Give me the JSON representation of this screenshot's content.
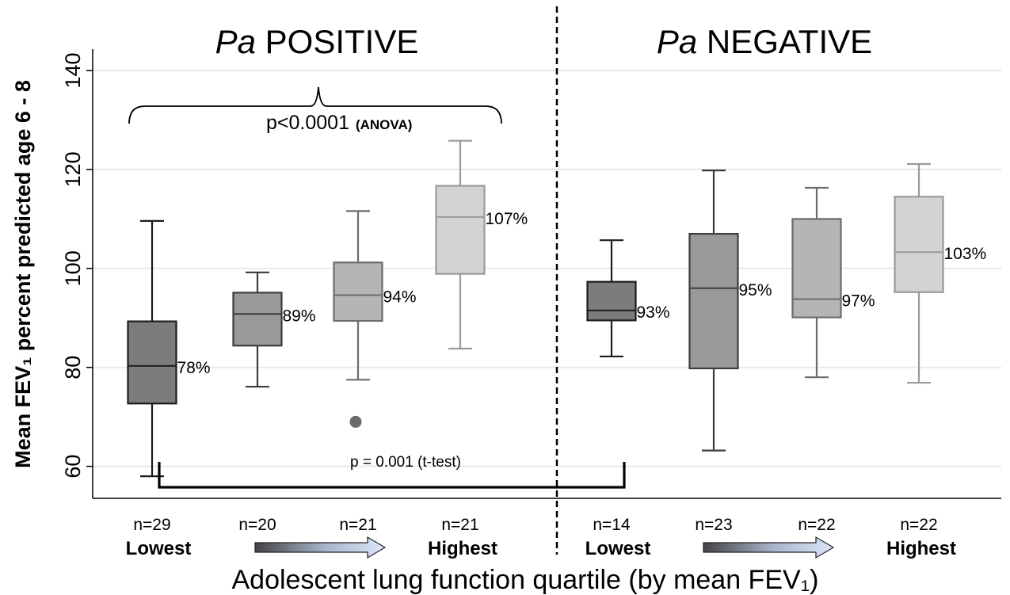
{
  "chart_data": {
    "type": "box",
    "ylabel": "Mean FEV₁ percent predicted age 6 - 8",
    "xlabel": "Adolescent lung function quartile (by mean FEV₁)",
    "ylim": [
      50,
      140
    ],
    "yticks": [
      60,
      80,
      100,
      120,
      140
    ],
    "grid": true,
    "panels": [
      {
        "title_italic": "Pa",
        "title_rest": " POSITIVE",
        "low_label": "Lowest",
        "high_label": "Highest",
        "groups": [
          {
            "n": "n=29",
            "min": 58,
            "q1": 72.7,
            "median": 80.3,
            "q3": 89.3,
            "max": 109.6,
            "label": "78%",
            "shade": "#7c7c7c"
          },
          {
            "n": "n=20",
            "min": 76.1,
            "q1": 84.4,
            "median": 90.8,
            "q3": 95.1,
            "max": 99.2,
            "label": "89%",
            "shade": "#9a9a9a"
          },
          {
            "n": "n=21",
            "min": 77.5,
            "q1": 89.4,
            "median": 94.6,
            "q3": 101.2,
            "max": 111.6,
            "label": "94%",
            "shade": "#b5b5b5",
            "outliers": [
              69
            ]
          },
          {
            "n": "n=21",
            "min": 83.8,
            "q1": 98.9,
            "median": 110.4,
            "q3": 116.7,
            "max": 125.8,
            "label": "107%",
            "shade": "#d3d3d3"
          }
        ],
        "annotations": {
          "anova_p": "p<0.0001",
          "anova_test": "(ANOVA)"
        }
      },
      {
        "title_italic": "Pa",
        "title_rest": " NEGATIVE",
        "low_label": "Lowest",
        "high_label": "Highest",
        "groups": [
          {
            "n": "n=14",
            "min": 82.2,
            "q1": 89.5,
            "median": 91.5,
            "q3": 97.3,
            "max": 105.7,
            "label": "93%",
            "shade": "#7c7c7c"
          },
          {
            "n": "n=23",
            "min": 63.2,
            "q1": 79.8,
            "median": 96.0,
            "q3": 107.0,
            "max": 119.8,
            "label": "95%",
            "shade": "#9a9a9a"
          },
          {
            "n": "n=22",
            "min": 78.0,
            "q1": 90.1,
            "median": 93.8,
            "q3": 110.0,
            "max": 116.3,
            "label": "97%",
            "shade": "#b5b5b5"
          },
          {
            "n": "n=22",
            "min": 76.9,
            "q1": 95.2,
            "median": 103.3,
            "q3": 114.5,
            "max": 121.1,
            "label": "103%",
            "shade": "#d3d3d3"
          }
        ]
      }
    ],
    "ttest_label": "p = 0.001 (t-test)"
  }
}
